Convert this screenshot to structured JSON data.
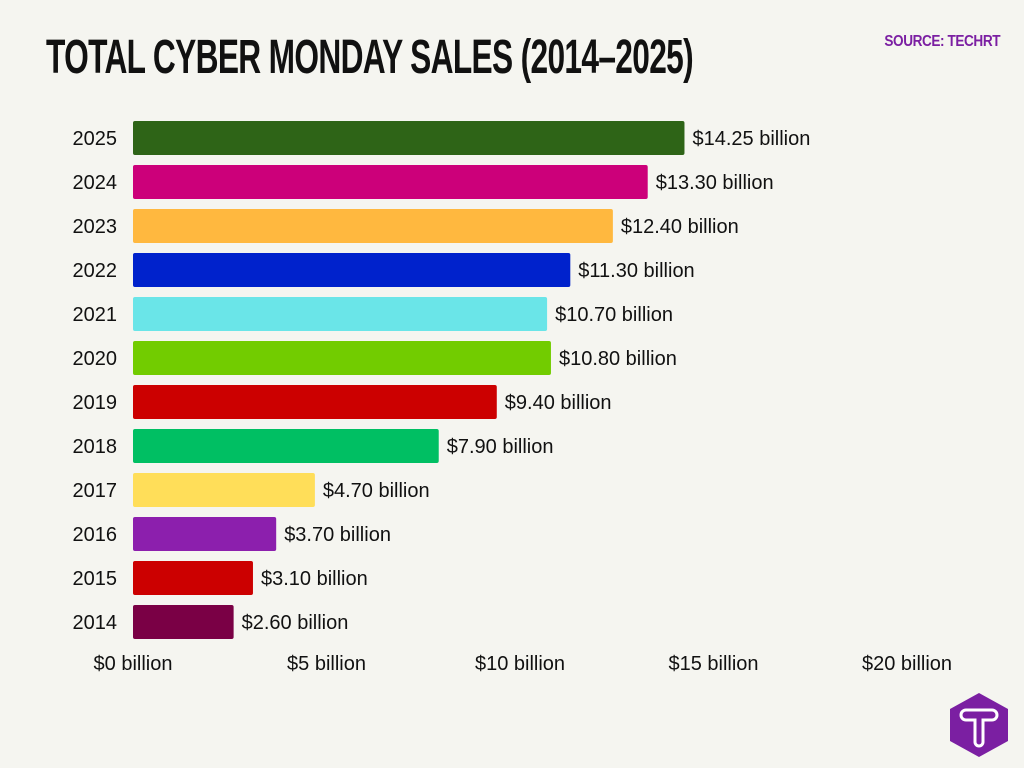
{
  "chart_data": {
    "type": "bar",
    "orientation": "horizontal",
    "title": "TOTAL CYBER MONDAY SALES (2014–2025)",
    "source": "SOURCE: TECHRT",
    "categories": [
      "2025",
      "2024",
      "2023",
      "2022",
      "2021",
      "2020",
      "2019",
      "2018",
      "2017",
      "2016",
      "2015",
      "2014"
    ],
    "values": [
      14.25,
      13.3,
      12.4,
      11.3,
      10.7,
      10.8,
      9.4,
      7.9,
      4.7,
      3.7,
      3.1,
      2.6
    ],
    "data_labels": [
      "$14.25 billion",
      "$13.30 billion",
      "$12.40 billion",
      "$11.30 billion",
      "$10.70 billion",
      "$10.80 billion",
      "$9.40 billion",
      "$7.90 billion",
      "$4.70 billion",
      "$3.70 billion",
      "$3.10 billion",
      "$2.60 billion"
    ],
    "colors": [
      "#2e6417",
      "#cc007a",
      "#ffb83f",
      "#0022cc",
      "#6ae5e8",
      "#72cc00",
      "#cc0000",
      "#00bf63",
      "#ffde59",
      "#8c1fad",
      "#cc0000",
      "#7a0045"
    ],
    "xlim": [
      0,
      20
    ],
    "xticks": [
      0,
      5,
      10,
      15,
      20
    ],
    "xtick_labels": [
      "$0 billion",
      "$5 billion",
      "$10 billion",
      "$15 billion",
      "$20 billion"
    ],
    "xlabel": "",
    "ylabel": "",
    "grid": false
  },
  "brand": {
    "logo_letter": "T",
    "color": "#7b1fa2"
  }
}
